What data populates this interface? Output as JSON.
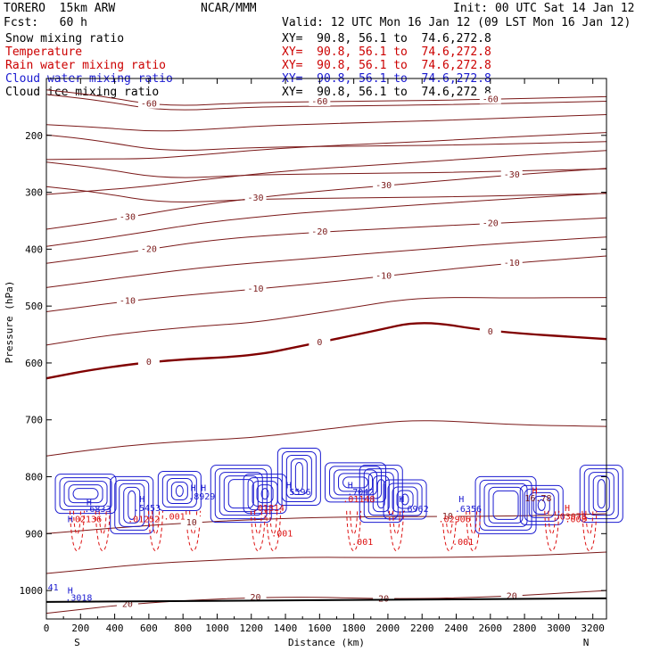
{
  "header": {
    "model": "TORERO  15km ARW",
    "org": "NCAR/MMM",
    "init": "Init: 00 UTC Sat 14 Jan 12",
    "fcst": "Fcst:   60 h",
    "valid": "Valid: 12 UTC Mon 16 Jan 12 (09 LST Mon 16 Jan 12)"
  },
  "legend": [
    {
      "name": "Snow mixing ratio",
      "color": "#000000",
      "xy": "XY=  90.8, 56.1 to  74.6,272.8"
    },
    {
      "name": "Temperature",
      "color": "#cc0000",
      "xy": "XY=  90.8, 56.1 to  74.6,272.8"
    },
    {
      "name": "Rain water mixing ratio",
      "color": "#cc0000",
      "xy": "XY=  90.8, 56.1 to  74.6,272.8"
    },
    {
      "name": "Cloud water mixing ratio",
      "color": "#1a1ad0",
      "xy": "XY=  90.8, 56.1 to  74.6,272.8"
    },
    {
      "name": "Cloud ice mixing ratio",
      "color": "#000000",
      "xy": "XY=  90.8, 56.1 to  74.6,272.8"
    }
  ],
  "chart_data": {
    "type": "line",
    "xlabel": "Distance (km)",
    "ylabel": "Pressure (hPa)",
    "xlim": [
      0,
      3280
    ],
    "ylim": [
      1050,
      100
    ],
    "x_ticks": [
      0,
      200,
      400,
      600,
      800,
      1000,
      1200,
      1400,
      1600,
      1800,
      2000,
      2200,
      2400,
      2600,
      2800,
      3000,
      3200
    ],
    "y_ticks": [
      200,
      300,
      400,
      500,
      600,
      700,
      800,
      900,
      1000
    ],
    "x_end_labels": [
      "S",
      "N"
    ],
    "temperature_isotherms": [
      {
        "value": -60,
        "labels": [
          "-60",
          "-60",
          "-60"
        ],
        "points": [
          [
            0,
            120
          ],
          [
            300,
            130
          ],
          [
            700,
            150
          ],
          [
            1200,
            142
          ],
          [
            1800,
            140
          ],
          [
            2400,
            138
          ],
          [
            3280,
            132
          ]
        ]
      },
      {
        "value": -30,
        "labels": [
          "-30",
          "-30",
          "-30",
          "-30"
        ],
        "points": [
          [
            0,
            365
          ],
          [
            400,
            348
          ],
          [
            900,
            322
          ],
          [
            1500,
            300
          ],
          [
            2200,
            283
          ],
          [
            2700,
            270
          ],
          [
            3280,
            258
          ]
        ]
      },
      {
        "value": -20,
        "labels": [
          "-20",
          "-20",
          "-20"
        ],
        "points": [
          [
            0,
            425
          ],
          [
            500,
            405
          ],
          [
            1000,
            382
          ],
          [
            1600,
            370
          ],
          [
            2100,
            362
          ],
          [
            2600,
            355
          ],
          [
            3280,
            345
          ]
        ]
      },
      {
        "value": -10,
        "labels": [
          "-10",
          "-10",
          "-10",
          "-10"
        ],
        "points": [
          [
            0,
            510
          ],
          [
            500,
            490
          ],
          [
            1000,
            476
          ],
          [
            1600,
            460
          ],
          [
            2200,
            440
          ],
          [
            2700,
            425
          ],
          [
            3280,
            412
          ]
        ]
      },
      {
        "value": 0,
        "labels": [
          "0",
          "0",
          "0"
        ],
        "points": [
          [
            0,
            627
          ],
          [
            300,
            610
          ],
          [
            700,
            595
          ],
          [
            1200,
            588
          ],
          [
            1500,
            570
          ],
          [
            1900,
            545
          ],
          [
            2200,
            525
          ],
          [
            2600,
            545
          ],
          [
            3280,
            558
          ]
        ]
      },
      {
        "value": 10,
        "labels": [
          "10",
          "10"
        ],
        "points": [
          [
            0,
            900
          ],
          [
            600,
            885
          ],
          [
            1200,
            875
          ],
          [
            1800,
            870
          ],
          [
            2400,
            870
          ],
          [
            3000,
            868
          ],
          [
            3280,
            865
          ]
        ]
      },
      {
        "value": 20,
        "labels": [
          "20",
          "20",
          "20",
          "20"
        ],
        "points": [
          [
            0,
            1040
          ],
          [
            600,
            1020
          ],
          [
            1400,
            1010
          ],
          [
            2000,
            1015
          ],
          [
            2600,
            1012
          ],
          [
            3280,
            1000
          ]
        ]
      }
    ],
    "rain_labels": [
      ".02136",
      ".01252",
      ".001",
      ".01814",
      ".001",
      ".01148",
      ".001",
      ".02906",
      ".001",
      ".03078"
    ],
    "cloud_water_labels": [
      ".6833",
      ".5453",
      ".8929",
      ".5596",
      ".7042",
      ".6962",
      ".6356",
      ".3018",
      "41"
    ],
    "extrema_labels": [
      "H",
      "H",
      "H",
      "H",
      "H",
      "H",
      "H",
      "H",
      "H",
      "H",
      "H",
      "H"
    ],
    "t_extrema_labels": [
      "16.78",
      ".003"
    ]
  },
  "colors": {
    "temperature": "#7a1818",
    "freezing": "#800000",
    "rain": "#dd1111",
    "cloud": "#1a1ad0",
    "axis": "#000000"
  }
}
